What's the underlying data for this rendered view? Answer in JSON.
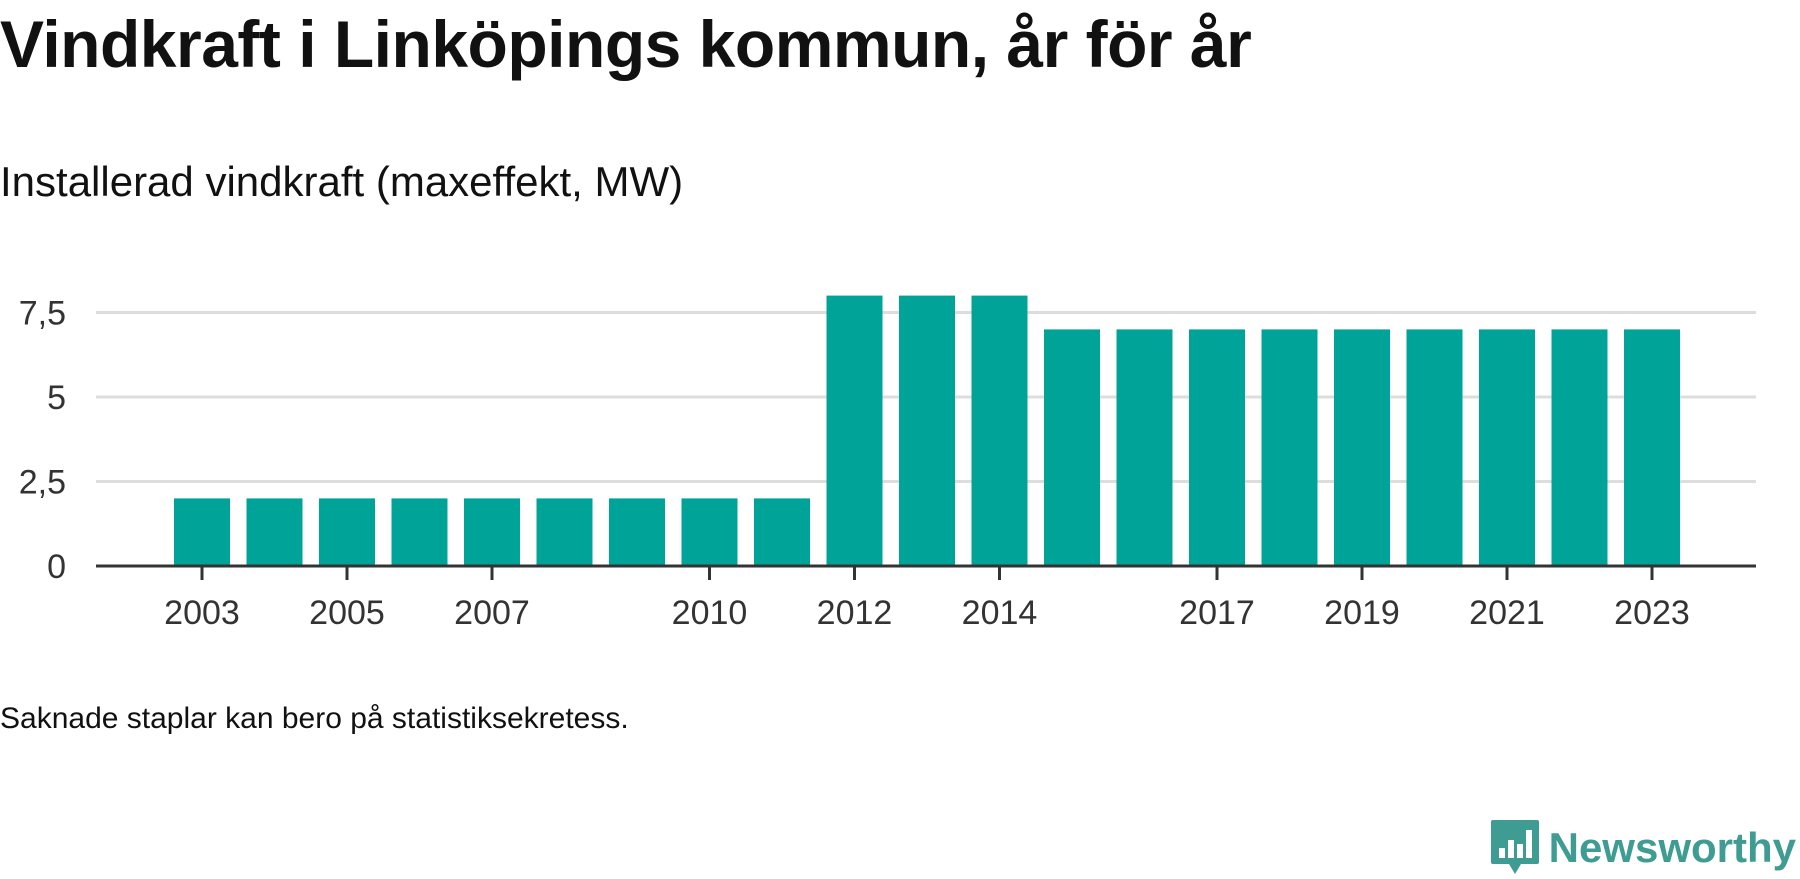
{
  "header": {
    "title": "Vindkraft i Linköpings kommun, år för år",
    "subtitle": "Installerad vindkraft (maxeffekt, MW)"
  },
  "footer": {
    "note": "Saknade staplar kan bero på statistiksekretess.",
    "brand": "Newsworthy"
  },
  "colors": {
    "bar": "#00a398",
    "grid": "#dddddd",
    "axis": "#333333",
    "brand": "#3e9c93"
  },
  "chart_data": {
    "type": "bar",
    "categories": [
      "2003",
      "2004",
      "2005",
      "2006",
      "2007",
      "2008",
      "2009",
      "2010",
      "2011",
      "2012",
      "2013",
      "2014",
      "2015",
      "2016",
      "2017",
      "2018",
      "2019",
      "2020",
      "2021",
      "2022",
      "2023"
    ],
    "values": [
      2,
      2,
      2,
      2,
      2,
      2,
      2,
      2,
      2,
      8,
      8,
      8,
      7,
      7,
      7,
      7,
      7,
      7,
      7,
      7,
      7
    ],
    "x_tick_labels": [
      "2003",
      "2005",
      "2007",
      "2010",
      "2012",
      "2014",
      "2017",
      "2019",
      "2021",
      "2023"
    ],
    "y_ticks": [
      0,
      2.5,
      5,
      7.5
    ],
    "y_tick_labels": [
      "0",
      "2,5",
      "5",
      "7,5"
    ],
    "ylim": [
      0,
      8.2
    ],
    "grid": true,
    "legend": "none"
  }
}
